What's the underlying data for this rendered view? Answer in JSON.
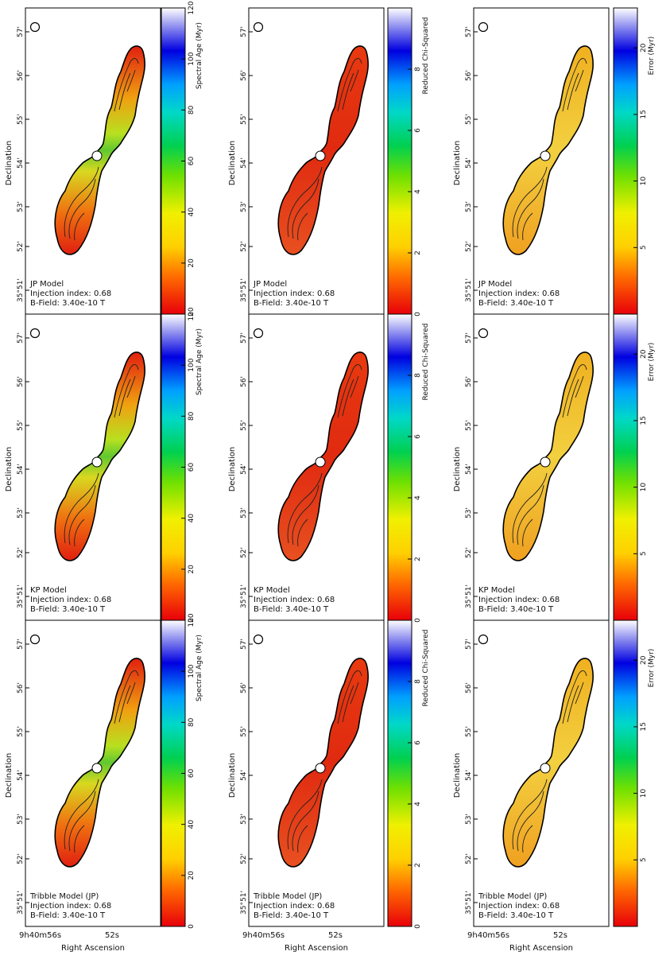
{
  "figure": {
    "axes": {
      "ylabel": "Declination",
      "xlabel": "Right Ascension",
      "dec_ticks": [
        "57'",
        "56'",
        "55'",
        "54'",
        "53'",
        "52'",
        "35°51'"
      ],
      "ra_ticks": [
        "9h40m56s",
        "52s"
      ]
    },
    "rows": [
      {
        "model": "JP Model",
        "injection": "Injection index: 0.68",
        "bfield": "B-Field: 3.40e-10 T"
      },
      {
        "model": "KP Model",
        "injection": "Injection index: 0.68",
        "bfield": "B-Field: 3.40e-10 T"
      },
      {
        "model": "Tribble Model (JP)",
        "injection": "Injection index: 0.68",
        "bfield": "B-Field: 3.40e-10 T"
      }
    ],
    "columns": [
      {
        "quantity": "Spectral Age (Myr)",
        "ticks": [
          0,
          20,
          40,
          60,
          80,
          100,
          120
        ],
        "min": 0,
        "max": 120,
        "colorbar_labels": [
          [
            "Spectral Age (Myr)",
            "Spectral Age (Myr)",
            "Spectral Age (Myr)"
          ]
        ]
      },
      {
        "quantity": "Reduced Chi-Squared",
        "ticks": [
          0,
          2,
          4,
          6,
          8
        ],
        "min": 0,
        "max": 10
      },
      {
        "quantity": "Error (Myr)",
        "ticks": [
          5,
          10,
          15,
          20
        ],
        "min": 0,
        "max": 23
      }
    ]
  }
}
